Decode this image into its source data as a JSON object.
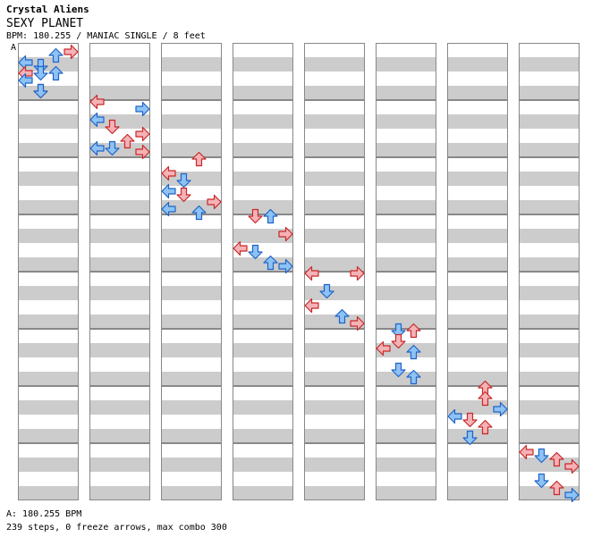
{
  "header": {
    "artist": "Crystal Aliens",
    "title": "SEXY PLANET",
    "info": "BPM: 180.255 / MANIAC SINGLE / 8 feet"
  },
  "bpm_marker": "A",
  "footer": {
    "bpm_line": "A: 180.255 BPM",
    "stats_line": "239 steps, 0 freeze arrows, max combo 300"
  },
  "colors": {
    "quarter_fill": "#f5b2b6",
    "quarter_stroke": "#c82828",
    "eighth_fill": "#8ec2f4",
    "eighth_stroke": "#1e64c8",
    "band": "#cccccc",
    "background": "#ffffff"
  },
  "chart_data": {
    "type": "step-chart",
    "lanes": [
      "left",
      "down",
      "up",
      "right"
    ],
    "measures_per_column": 8,
    "rows_per_measure": 16,
    "column_count": 8,
    "notes": [
      [
        [
          0,
          2,
          3,
          0
        ],
        [
          0,
          3,
          2,
          1
        ],
        [
          0,
          5,
          0,
          1
        ],
        [
          0,
          6,
          1,
          1
        ],
        [
          0,
          8,
          0,
          0
        ],
        [
          0,
          8,
          1,
          1
        ],
        [
          0,
          8,
          2,
          1
        ],
        [
          0,
          10,
          0,
          1
        ],
        [
          0,
          13,
          1,
          0
        ],
        [
          0,
          13,
          1,
          1
        ]
      ],
      [
        [
          1,
          0,
          0,
          0
        ],
        [
          1,
          2,
          3,
          1
        ],
        [
          1,
          5,
          0,
          1
        ],
        [
          1,
          7,
          1,
          0
        ],
        [
          1,
          9,
          3,
          0
        ],
        [
          1,
          11,
          2,
          0
        ],
        [
          1,
          13,
          0,
          1
        ],
        [
          1,
          13,
          1,
          1
        ],
        [
          1,
          14,
          3,
          0
        ]
      ],
      [
        [
          2,
          0,
          2,
          0
        ],
        [
          2,
          4,
          0,
          0
        ],
        [
          2,
          6,
          1,
          1
        ],
        [
          2,
          9,
          0,
          1
        ],
        [
          2,
          10,
          1,
          0
        ],
        [
          2,
          12,
          3,
          0
        ],
        [
          2,
          14,
          0,
          1
        ],
        [
          2,
          15,
          2,
          1
        ]
      ],
      [
        [
          3,
          0,
          1,
          0
        ],
        [
          3,
          0,
          2,
          1
        ],
        [
          3,
          5,
          3,
          0
        ],
        [
          3,
          9,
          0,
          0
        ],
        [
          3,
          10,
          1,
          1
        ],
        [
          3,
          13,
          2,
          1
        ],
        [
          3,
          14,
          3,
          1
        ]
      ],
      [
        [
          4,
          0,
          0,
          0
        ],
        [
          4,
          0,
          3,
          0
        ],
        [
          4,
          5,
          1,
          1
        ],
        [
          4,
          9,
          0,
          0
        ],
        [
          4,
          12,
          2,
          1
        ],
        [
          4,
          14,
          3,
          0
        ]
      ],
      [
        [
          5,
          0,
          1,
          1
        ],
        [
          5,
          0,
          2,
          0
        ],
        [
          5,
          3,
          1,
          0
        ],
        [
          5,
          5,
          0,
          0
        ],
        [
          5,
          6,
          2,
          1
        ],
        [
          5,
          11,
          1,
          1
        ],
        [
          5,
          13,
          2,
          1
        ]
      ],
      [
        [
          6,
          0,
          2,
          0
        ],
        [
          6,
          3,
          2,
          0
        ],
        [
          6,
          6,
          3,
          1
        ],
        [
          6,
          8,
          0,
          1
        ],
        [
          6,
          9,
          1,
          0
        ],
        [
          6,
          11,
          2,
          0
        ],
        [
          6,
          14,
          1,
          1
        ]
      ],
      [
        [
          7,
          2,
          0,
          0
        ],
        [
          7,
          3,
          1,
          1
        ],
        [
          7,
          4,
          2,
          0
        ],
        [
          7,
          6,
          3,
          0
        ],
        [
          7,
          10,
          1,
          1
        ],
        [
          7,
          12,
          2,
          0
        ],
        [
          7,
          14,
          3,
          1
        ]
      ]
    ]
  }
}
